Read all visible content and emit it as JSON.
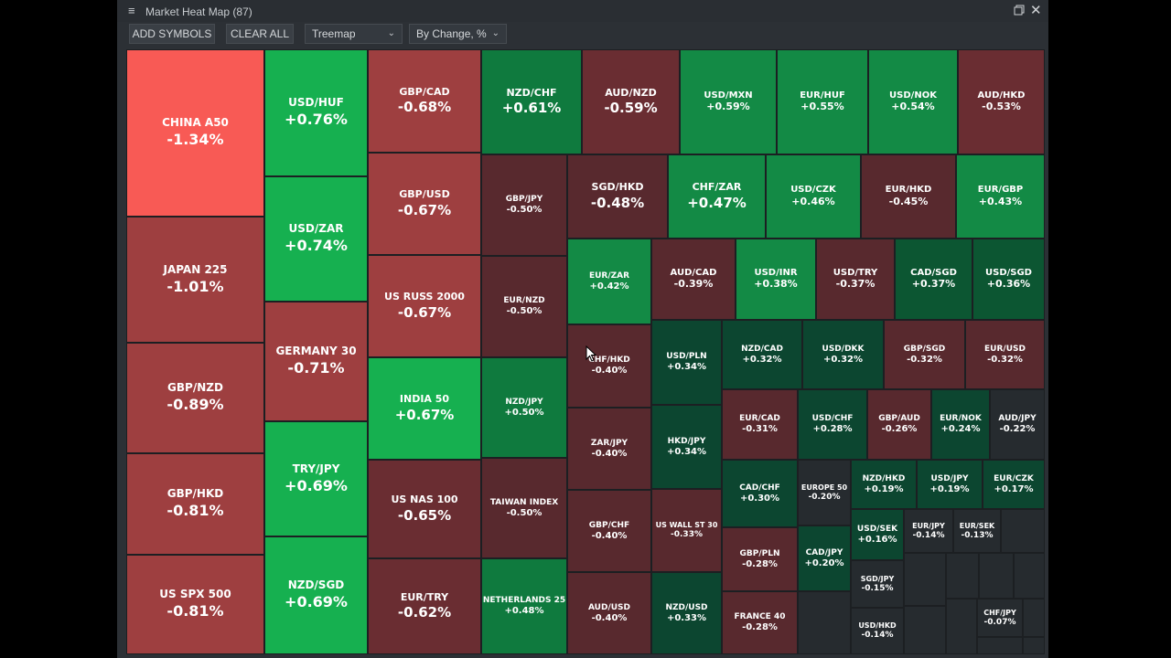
{
  "window": {
    "title": "Market Heat Map (87)",
    "menu_icon": "hamburger-icon",
    "restore_icon": "restore-window-icon",
    "close_icon": "close-icon",
    "close_glyph": "✕",
    "menu_glyph": "≡"
  },
  "toolbar": {
    "add_symbols": "ADD SYMBOLS",
    "clear_all": "CLEAR ALL",
    "view_select": "Treemap",
    "sort_select": "By Change, %"
  },
  "colors": {
    "strong_red": "#f85a55",
    "red": "#9e3f40",
    "dark_red": "#6a2d32",
    "darker_red": "#58292e",
    "bright_green": "#16b050",
    "green": "#138a45",
    "mid_green": "#0f7a3e",
    "dark_green": "#0c5632",
    "darker_green": "#0c4630",
    "neutral": "#262b2f"
  },
  "tiles": [
    {
      "name": "CHINA A50",
      "change": "-1.34%"
    },
    {
      "name": "JAPAN 225",
      "change": "-1.01%"
    },
    {
      "name": "GBP/NZD",
      "change": "-0.89%"
    },
    {
      "name": "GBP/HKD",
      "change": "-0.81%"
    },
    {
      "name": "US SPX 500",
      "change": "-0.81%"
    },
    {
      "name": "USD/HUF",
      "change": "+0.76%"
    },
    {
      "name": "USD/ZAR",
      "change": "+0.74%"
    },
    {
      "name": "GERMANY 30",
      "change": "-0.71%"
    },
    {
      "name": "TRY/JPY",
      "change": "+0.69%"
    },
    {
      "name": "NZD/SGD",
      "change": "+0.69%"
    },
    {
      "name": "GBP/CAD",
      "change": "-0.68%"
    },
    {
      "name": "GBP/USD",
      "change": "-0.67%"
    },
    {
      "name": "US RUSS 2000",
      "change": "-0.67%"
    },
    {
      "name": "INDIA 50",
      "change": "+0.67%"
    },
    {
      "name": "US NAS 100",
      "change": "-0.65%"
    },
    {
      "name": "EUR/TRY",
      "change": "-0.62%"
    },
    {
      "name": "NZD/CHF",
      "change": "+0.61%"
    },
    {
      "name": "AUD/NZD",
      "change": "-0.59%"
    },
    {
      "name": "USD/MXN",
      "change": "+0.59%"
    },
    {
      "name": "EUR/HUF",
      "change": "+0.55%"
    },
    {
      "name": "USD/NOK",
      "change": "+0.54%"
    },
    {
      "name": "AUD/HKD",
      "change": "-0.53%"
    },
    {
      "name": "GBP/JPY",
      "change": "-0.50%"
    },
    {
      "name": "EUR/NZD",
      "change": "-0.50%"
    },
    {
      "name": "NZD/JPY",
      "change": "+0.50%"
    },
    {
      "name": "TAIWAN INDEX",
      "change": "-0.50%"
    },
    {
      "name": "NETHERLANDS 25",
      "change": "+0.48%"
    },
    {
      "name": "SGD/HKD",
      "change": "-0.48%"
    },
    {
      "name": "CHF/ZAR",
      "change": "+0.47%"
    },
    {
      "name": "USD/CZK",
      "change": "+0.46%"
    },
    {
      "name": "EUR/HKD",
      "change": "-0.45%"
    },
    {
      "name": "EUR/GBP",
      "change": "+0.43%"
    },
    {
      "name": "EUR/ZAR",
      "change": "+0.42%"
    },
    {
      "name": "AUD/CAD",
      "change": "-0.39%"
    },
    {
      "name": "USD/INR",
      "change": "+0.38%"
    },
    {
      "name": "USD/TRY",
      "change": "-0.37%"
    },
    {
      "name": "CAD/SGD",
      "change": "+0.37%"
    },
    {
      "name": "USD/SGD",
      "change": "+0.36%"
    },
    {
      "name": "CHF/HKD",
      "change": "-0.40%"
    },
    {
      "name": "ZAR/JPY",
      "change": "-0.40%"
    },
    {
      "name": "GBP/CHF",
      "change": "-0.40%"
    },
    {
      "name": "AUD/USD",
      "change": "-0.40%"
    },
    {
      "name": "USD/PLN",
      "change": "+0.34%"
    },
    {
      "name": "HKD/JPY",
      "change": "+0.34%"
    },
    {
      "name": "US WALL ST 30",
      "change": "-0.33%"
    },
    {
      "name": "NZD/USD",
      "change": "+0.33%"
    },
    {
      "name": "NZD/CAD",
      "change": "+0.32%"
    },
    {
      "name": "USD/DKK",
      "change": "+0.32%"
    },
    {
      "name": "GBP/SGD",
      "change": "-0.32%"
    },
    {
      "name": "EUR/USD",
      "change": "-0.32%"
    },
    {
      "name": "EUR/CAD",
      "change": "-0.31%"
    },
    {
      "name": "USD/CHF",
      "change": "+0.28%"
    },
    {
      "name": "GBP/AUD",
      "change": "-0.26%"
    },
    {
      "name": "EUR/NOK",
      "change": "+0.24%"
    },
    {
      "name": "AUD/JPY",
      "change": "-0.22%"
    },
    {
      "name": "CAD/CHF",
      "change": "+0.30%"
    },
    {
      "name": "GBP/PLN",
      "change": "-0.28%"
    },
    {
      "name": "FRANCE 40",
      "change": "-0.28%"
    },
    {
      "name": "EUROPE 50",
      "change": "-0.20%"
    },
    {
      "name": "CAD/JPY",
      "change": "+0.20%"
    },
    {
      "name": "NZD/HKD",
      "change": "+0.19%"
    },
    {
      "name": "USD/JPY",
      "change": "+0.19%"
    },
    {
      "name": "EUR/CZK",
      "change": "+0.17%"
    },
    {
      "name": "USD/SEK",
      "change": "+0.16%"
    },
    {
      "name": "EUR/JPY",
      "change": "-0.14%"
    },
    {
      "name": "EUR/SEK",
      "change": "-0.13%"
    },
    {
      "name": "SGD/JPY",
      "change": "-0.15%"
    },
    {
      "name": "USD/HKD",
      "change": "-0.14%"
    },
    {
      "name": "CHF/JPY",
      "change": "-0.07%"
    }
  ]
}
